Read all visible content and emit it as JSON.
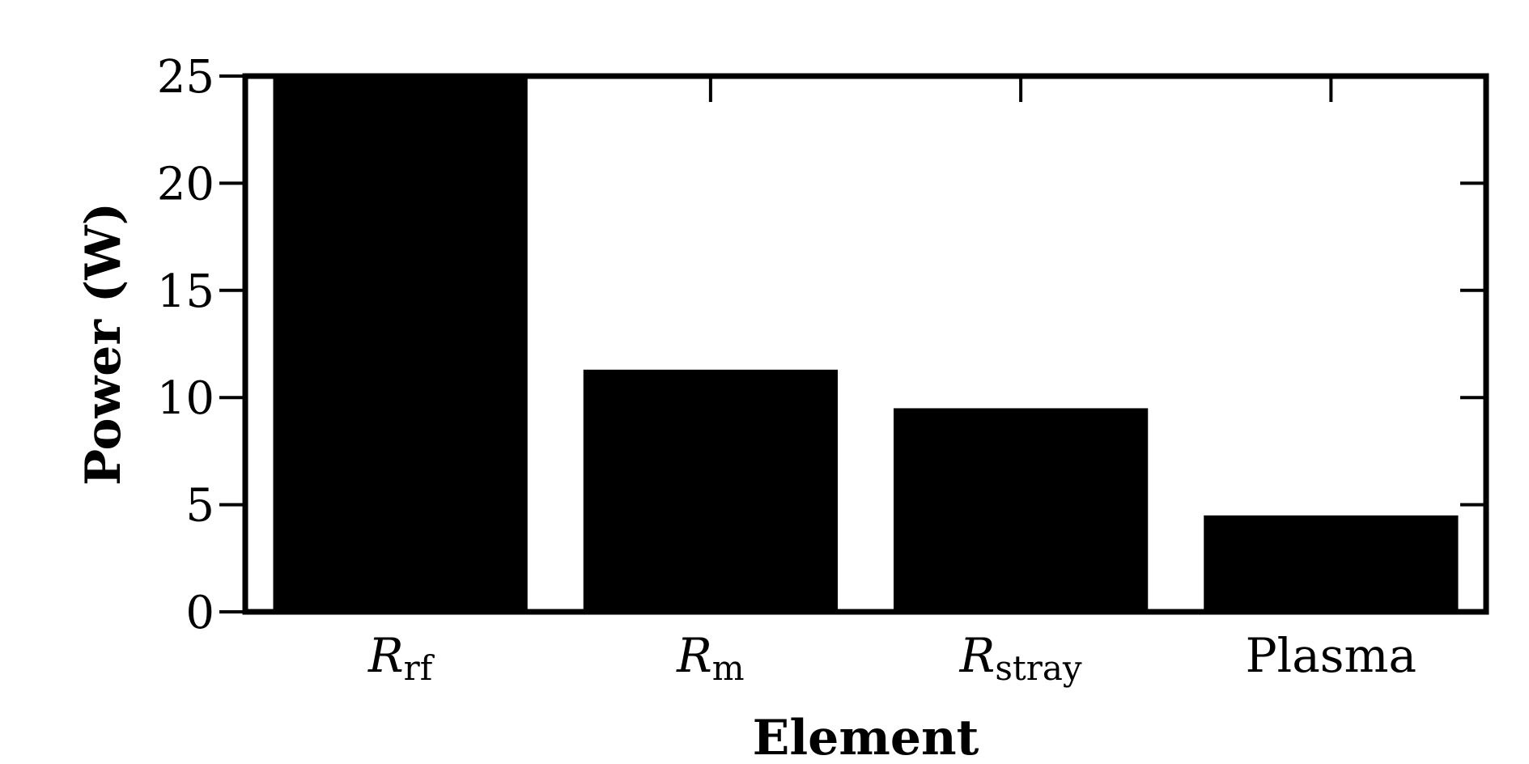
{
  "chart_data": {
    "type": "bar",
    "title": "",
    "xlabel": "Element",
    "ylabel": "Power (W)",
    "ylim": [
      0,
      25
    ],
    "yticks": [
      "0",
      "5",
      "10",
      "15",
      "20",
      "25"
    ],
    "categories": [
      {
        "main": "R",
        "sub": "rf",
        "italic": true
      },
      {
        "main": "R",
        "sub": "m",
        "italic": true
      },
      {
        "main": "R",
        "sub": "stray",
        "italic": true
      },
      {
        "main": "Plasma",
        "sub": "",
        "italic": false
      }
    ],
    "values": [
      25,
      11.3,
      9.5,
      4.5
    ],
    "bar_color": "#000000",
    "grid": false,
    "legend": "none"
  }
}
